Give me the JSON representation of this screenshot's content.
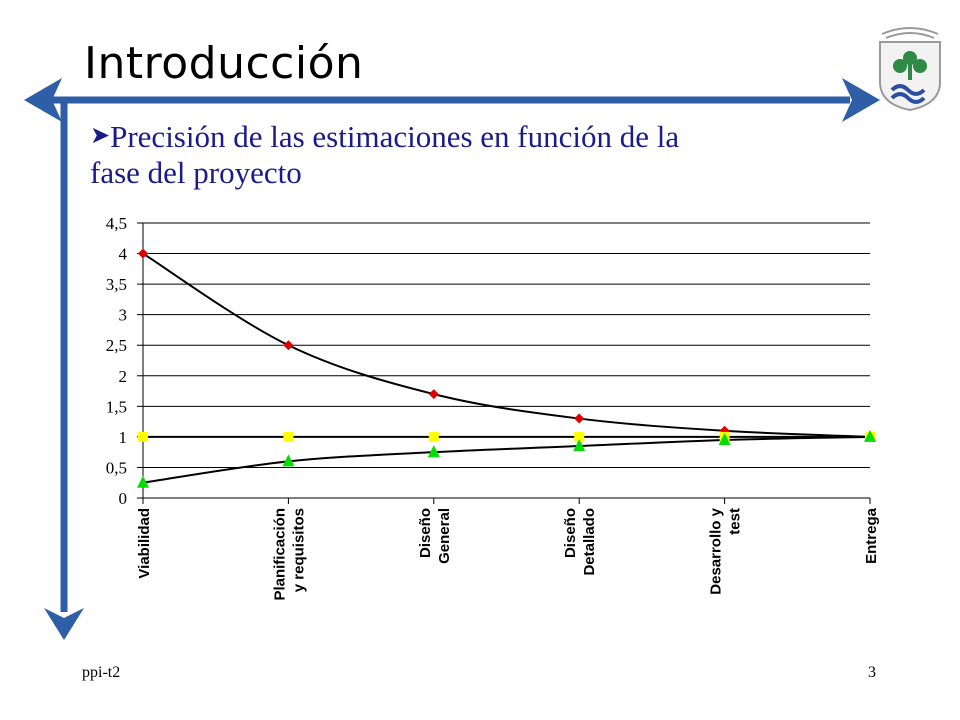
{
  "slide": {
    "title": "Introducción",
    "bullet_line1": "Precisión de las estimaciones en función de la",
    "bullet_line2": "fase del proyecto",
    "footer_left": "ppi-t2",
    "footer_right": "3"
  },
  "colors": {
    "frame": "#2e5ea6",
    "bullet_text": "#1a1a8c",
    "series_upper": "#e00000",
    "series_middle": "#ffff00",
    "series_lower": "#00dd00",
    "logo_green": "#2f8a45",
    "logo_blue": "#2b4fa0"
  },
  "chart_data": {
    "type": "line",
    "categories": [
      [
        "Viabilidad"
      ],
      [
        "Planificación",
        "y requisitos"
      ],
      [
        "Diseño",
        "General"
      ],
      [
        "Diseño",
        "Detallado"
      ],
      [
        "Desarrollo y",
        "test"
      ],
      [
        "Entrega"
      ]
    ],
    "series": [
      {
        "values": [
          4,
          2.5,
          1.7,
          1.3,
          1.1,
          1
        ],
        "marker": "diamond",
        "color": "#e00000"
      },
      {
        "values": [
          1,
          1,
          1,
          1,
          1,
          1
        ],
        "marker": "square",
        "color": "#ffff00"
      },
      {
        "values": [
          0.25,
          0.6,
          0.75,
          0.85,
          0.95,
          1
        ],
        "marker": "triangle",
        "color": "#00dd00"
      }
    ],
    "ylim": [
      0,
      4.5
    ],
    "yticks": [
      "0",
      "0,5",
      "1",
      "1,5",
      "2",
      "2,5",
      "3",
      "3,5",
      "4",
      "4,5"
    ],
    "grid": true,
    "legend": "none"
  }
}
